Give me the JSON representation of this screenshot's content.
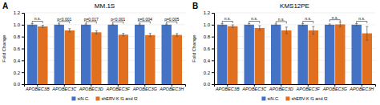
{
  "chart_data": [
    {
      "type": "bar",
      "title": "MM.1S",
      "label": "A",
      "ylabel": "Fold Change",
      "categories": [
        "APOBEC3B",
        "APOBEC3C",
        "APOBEC3D",
        "APOBEC3F",
        "APOBEC3G",
        "APOBEC3H"
      ],
      "series": [
        {
          "name": "siN.C.",
          "color": "#4472C4",
          "values": [
            1.0,
            1.0,
            1.0,
            1.0,
            1.0,
            1.0
          ],
          "errors": [
            0.018,
            0.014,
            0.013,
            0.01,
            0.013,
            0.01
          ]
        },
        {
          "name": "shERV-K f1 and f2",
          "color": "#E07020",
          "values": [
            0.972,
            0.905,
            0.872,
            0.832,
            0.825,
            0.828
          ],
          "errors": [
            0.02,
            0.028,
            0.028,
            0.022,
            0.028,
            0.022
          ]
        }
      ],
      "annotations": [
        "n.s.",
        "p<0.001",
        "p=0.017",
        "p<0.001",
        "p=0.004",
        "p=0.005"
      ],
      "ylim": [
        0,
        1.2
      ],
      "yticks": [
        {
          "value": 0,
          "label": "0.0"
        },
        0.2,
        0.4,
        0.6,
        0.8,
        {
          "value": 1.0,
          "label": "1.0"
        },
        1.2
      ],
      "grid": true,
      "legend": "bottom"
    },
    {
      "type": "bar",
      "title": "KMS12PE",
      "label": "B",
      "ylabel": "Fold Change",
      "categories": [
        "APOBEC3B",
        "APOBEC3C",
        "APOBEC3D",
        "APOBEC3F",
        "APOBEC3G",
        "APOBEC3H"
      ],
      "series": [
        {
          "name": "siN.C.",
          "color": "#4472C4",
          "values": [
            1.0,
            1.0,
            1.0,
            1.0,
            1.0,
            1.0
          ],
          "errors": [
            0.018,
            0.018,
            0.013,
            0.018,
            0.013,
            0.018
          ]
        },
        {
          "name": "shERV-K f1 and f2",
          "color": "#E07020",
          "values": [
            0.975,
            0.945,
            0.905,
            0.905,
            1.005,
            0.855
          ],
          "errors": [
            0.022,
            0.038,
            0.055,
            0.065,
            0.038,
            0.115
          ]
        }
      ],
      "annotations": [
        "n.s.",
        "n.s.",
        "n.s.",
        "n.s.",
        "n.s.",
        "n.s."
      ],
      "ylim": [
        0,
        1.2
      ],
      "yticks": [
        {
          "value": 0,
          "label": "0.0"
        },
        0.2,
        0.4,
        0.6,
        0.8,
        {
          "value": 1.0,
          "label": "1.0"
        },
        1.2
      ],
      "grid": true,
      "legend": "bottom"
    }
  ]
}
